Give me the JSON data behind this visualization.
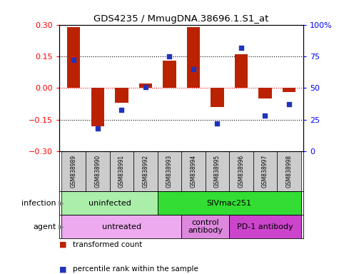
{
  "title": "GDS4235 / MmugDNA.38696.1.S1_at",
  "samples": [
    "GSM838989",
    "GSM838990",
    "GSM838991",
    "GSM838992",
    "GSM838993",
    "GSM838994",
    "GSM838995",
    "GSM838996",
    "GSM838997",
    "GSM838998"
  ],
  "transformed_count": [
    0.29,
    -0.18,
    -0.07,
    0.02,
    0.13,
    0.29,
    -0.09,
    0.16,
    -0.05,
    -0.02
  ],
  "percentile_rank": [
    72,
    18,
    33,
    51,
    75,
    65,
    22,
    82,
    28,
    37
  ],
  "ylim": [
    -0.3,
    0.3
  ],
  "yticks_left": [
    -0.3,
    -0.15,
    0,
    0.15,
    0.3
  ],
  "yticks_right": [
    0,
    25,
    50,
    75,
    100
  ],
  "bar_color": "#BB2200",
  "dot_color": "#2233BB",
  "bar_width": 0.55,
  "infection_groups": [
    {
      "label": "uninfected",
      "start": 0,
      "end": 3,
      "color": "#AAEEA A"
    },
    {
      "label": "SIVmac251",
      "start": 4,
      "end": 9,
      "color": "#33DD33"
    }
  ],
  "agent_groups": [
    {
      "label": "untreated",
      "start": 0,
      "end": 4,
      "color": "#EEAAEE"
    },
    {
      "label": "control\nantibody",
      "start": 5,
      "end": 6,
      "color": "#DD88DD"
    },
    {
      "label": "PD-1 antibody",
      "start": 7,
      "end": 9,
      "color": "#CC44CC"
    }
  ],
  "legend_bar_color": "#BB2200",
  "legend_dot_color": "#2233BB",
  "sample_box_color": "#CCCCCC"
}
